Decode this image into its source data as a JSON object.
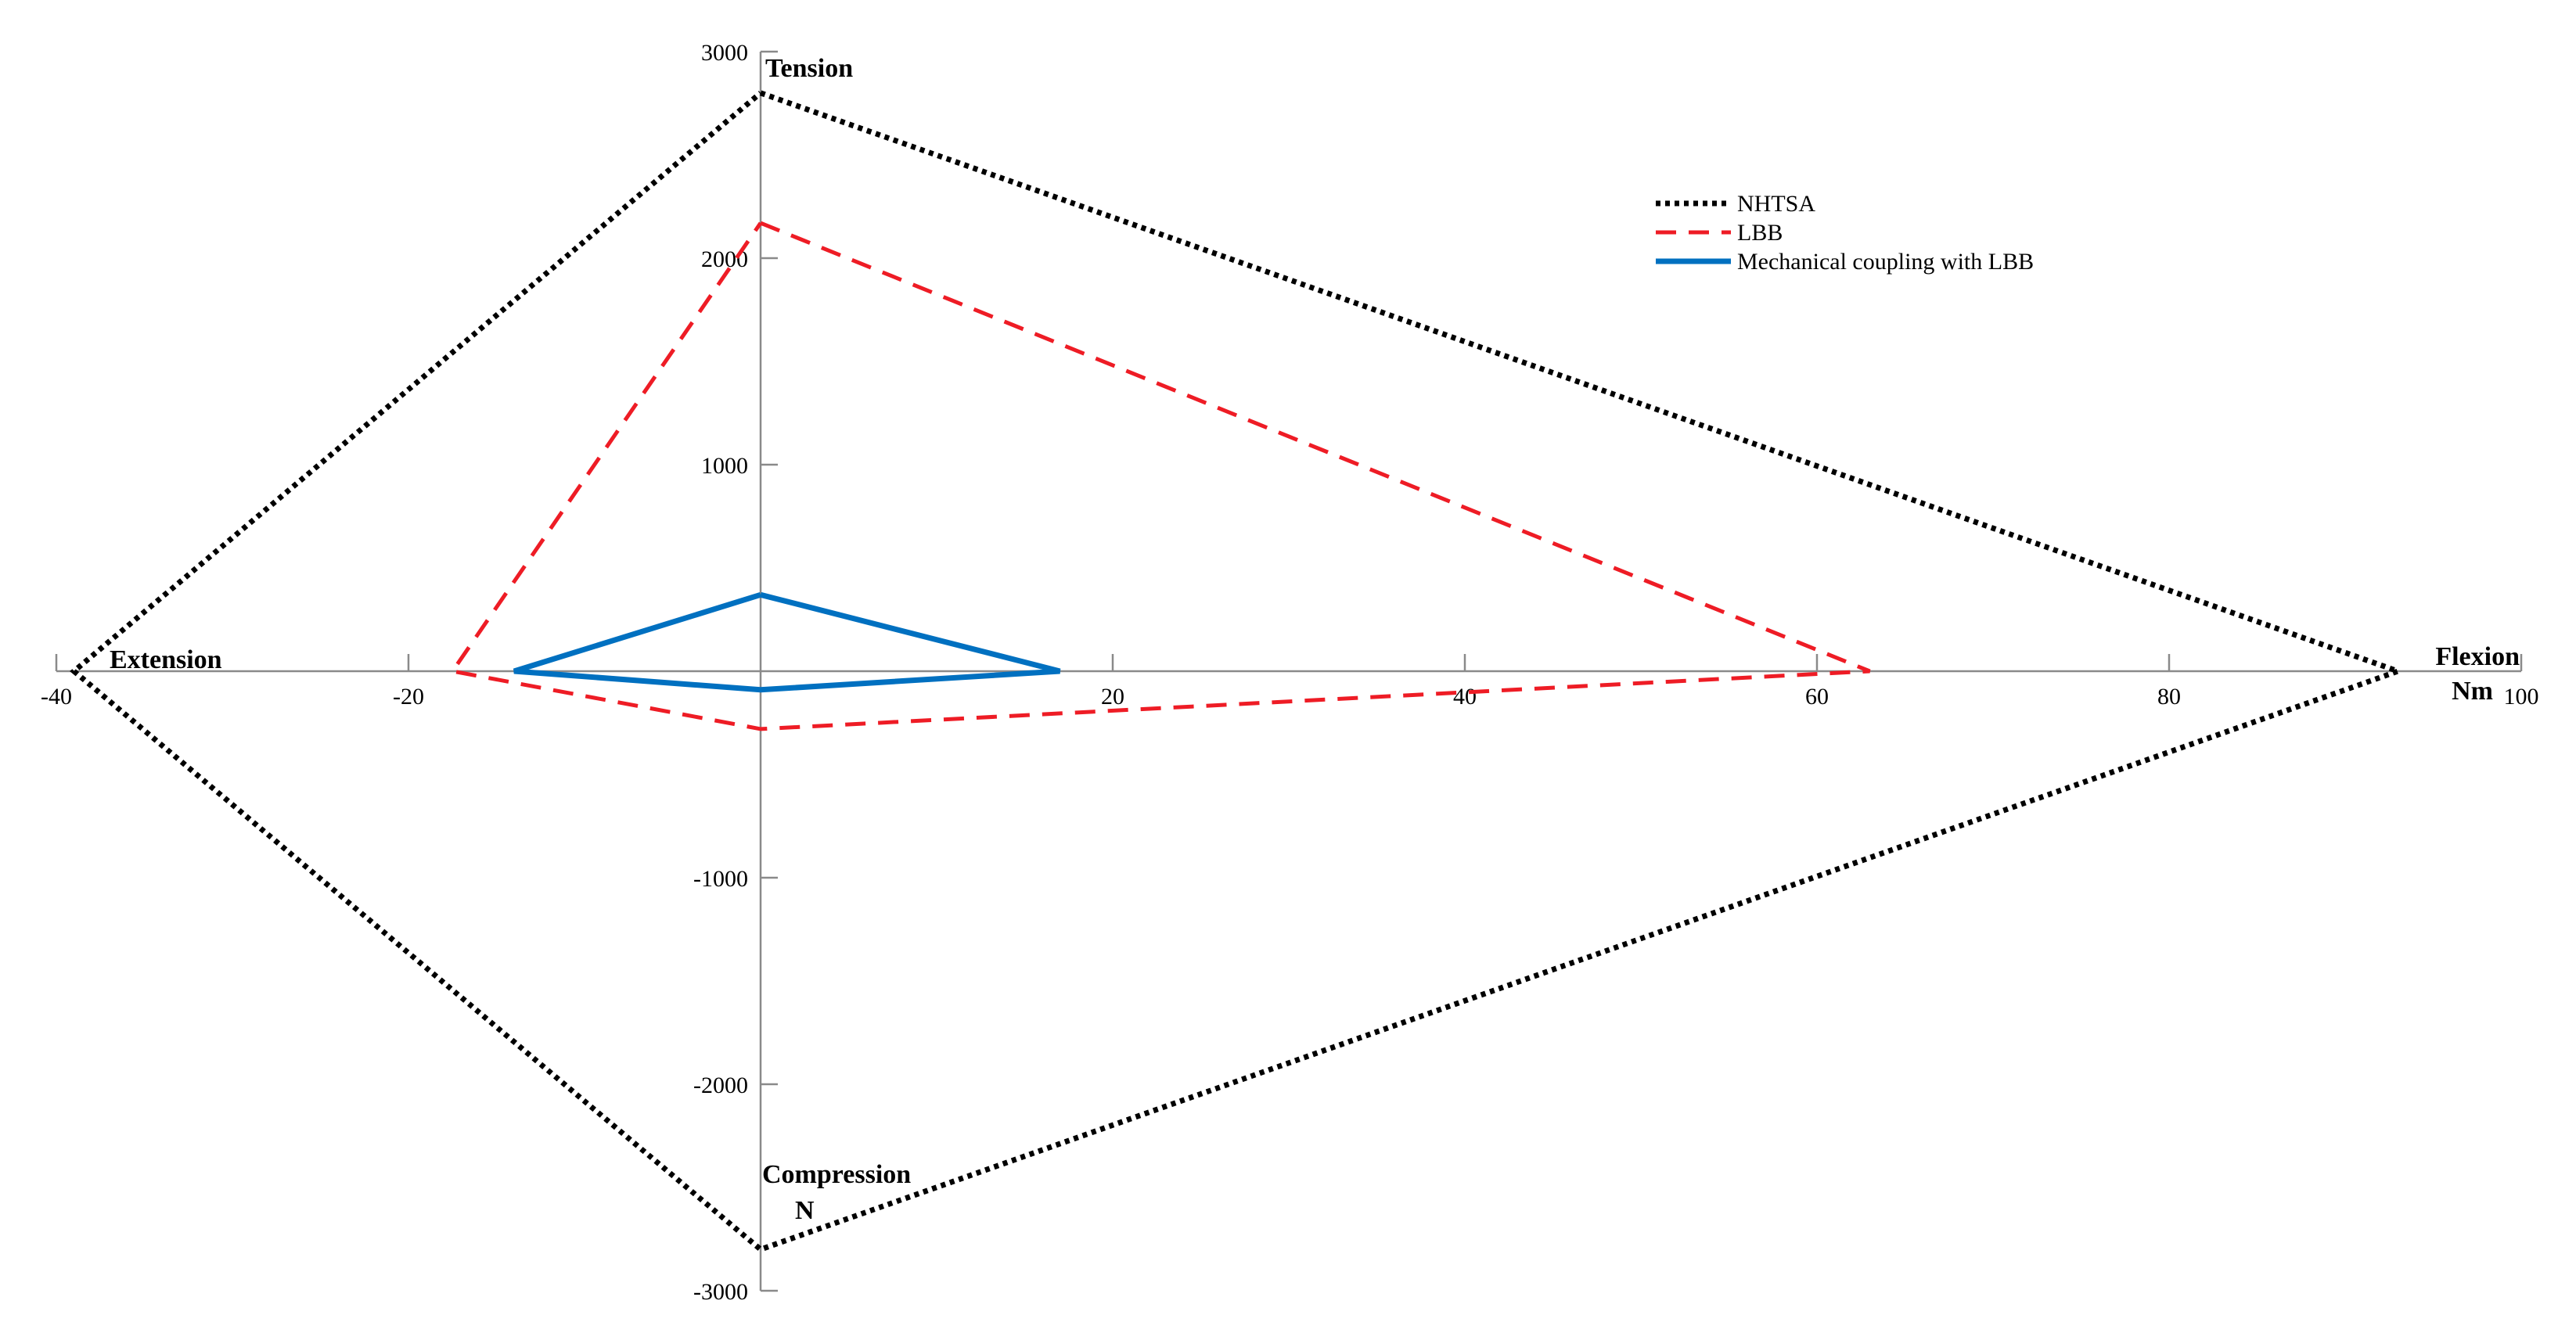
{
  "chart_data": {
    "type": "line",
    "title": "",
    "xlabel": "",
    "ylabel": "",
    "xlim": [
      -40,
      100
    ],
    "ylim": [
      -3000,
      3000
    ],
    "x_ticks": [
      -40,
      -20,
      20,
      40,
      60,
      80,
      100
    ],
    "y_ticks": [
      3000,
      2000,
      1000,
      -1000,
      -2000,
      -3000
    ],
    "x_tick_labels": [
      "-40",
      "-20",
      "20",
      "40",
      "60",
      "80",
      "100"
    ],
    "y_tick_labels": [
      "3000",
      "2000",
      "1000",
      "-1000",
      "-2000",
      "-3000"
    ],
    "grid": false,
    "legend_position": "top-right",
    "annotations": {
      "tension": "Tension",
      "compression": "Compression",
      "compression_unit": "N",
      "extension": "Extension",
      "flexion": "Flexion",
      "flexion_unit": "Nm"
    },
    "series": [
      {
        "name": "NHTSA",
        "color": "#000000",
        "dash": "dotted",
        "points": [
          [
            0,
            2800
          ],
          [
            93,
            0
          ],
          [
            0,
            -2800
          ],
          [
            -39,
            0
          ],
          [
            0,
            2800
          ]
        ]
      },
      {
        "name": "LBB",
        "color": "#ee1c25",
        "dash": "dashed",
        "points": [
          [
            0,
            2170
          ],
          [
            63,
            0
          ],
          [
            0,
            -280
          ],
          [
            -17.5,
            0
          ],
          [
            0,
            2170
          ]
        ]
      },
      {
        "name": "Mechanical coupling with LBB",
        "color": "#0070c0",
        "dash": "solid",
        "points": [
          [
            0,
            370
          ],
          [
            17,
            0
          ],
          [
            0,
            -90
          ],
          [
            -14,
            0
          ],
          [
            0,
            370
          ]
        ]
      }
    ]
  }
}
